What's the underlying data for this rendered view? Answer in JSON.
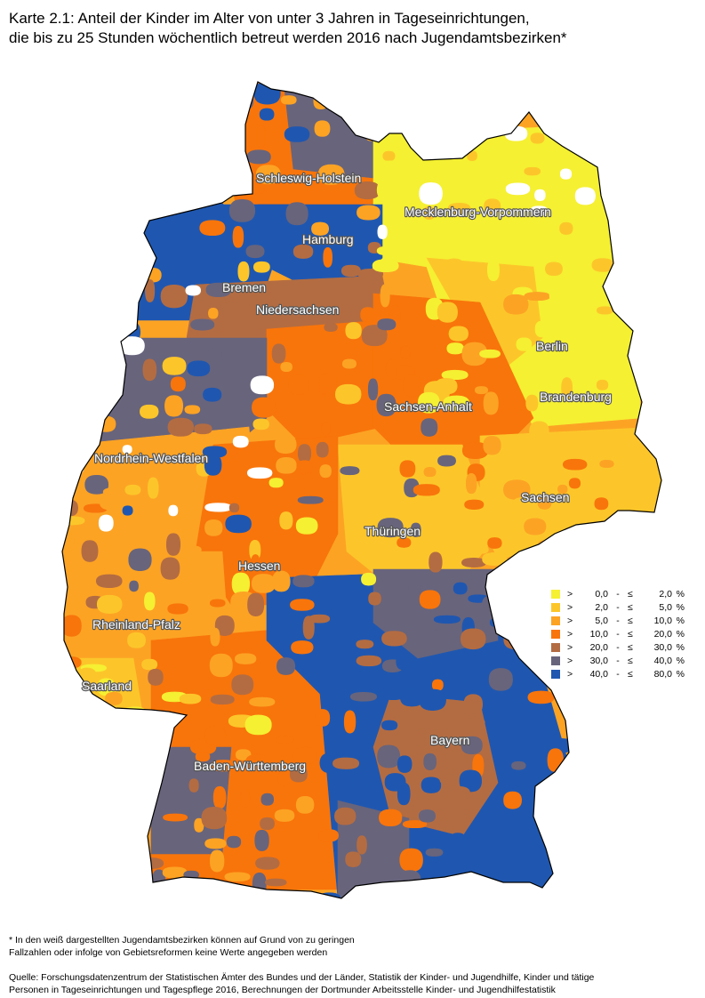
{
  "title": {
    "line1": "Karte 2.1: Anteil der Kinder im Alter von unter 3 Jahren in Tageseinrichtungen,",
    "line2": "die bis zu 25 Stunden wöchentlich betreut werden 2016 nach Jugendamtsbezirken*"
  },
  "colors": {
    "c0": "#f5f032",
    "c1": "#fcc62a",
    "c2": "#fca324",
    "c3": "#f8750b",
    "c4": "#b36c42",
    "c5": "#68647c",
    "c6": "#1f57b0",
    "nodata": "#ffffff",
    "border": "#000000"
  },
  "legend": [
    {
      "gt": ">",
      "low": "0,0",
      "dash": "-",
      "le": "≤",
      "high": "2,0",
      "unit": "%",
      "color": "#f5f032"
    },
    {
      "gt": ">",
      "low": "2,0",
      "dash": "-",
      "le": "≤",
      "high": "5,0",
      "unit": "%",
      "color": "#fcc62a"
    },
    {
      "gt": ">",
      "low": "5,0",
      "dash": "-",
      "le": "≤",
      "high": "10,0",
      "unit": "%",
      "color": "#fca324"
    },
    {
      "gt": ">",
      "low": "10,0",
      "dash": "-",
      "le": "≤",
      "high": "20,0",
      "unit": "%",
      "color": "#f8750b"
    },
    {
      "gt": ">",
      "low": "20,0",
      "dash": "-",
      "le": "≤",
      "high": "30,0",
      "unit": "%",
      "color": "#b36c42"
    },
    {
      "gt": ">",
      "low": "30,0",
      "dash": "-",
      "le": "≤",
      "high": "40,0",
      "unit": "%",
      "color": "#68647c"
    },
    {
      "gt": ">",
      "low": "40,0",
      "dash": "-",
      "le": "≤",
      "high": "80,0",
      "unit": "%",
      "color": "#1f57b0"
    }
  ],
  "states": {
    "schleswig_holstein": "Schleswig-Holstein",
    "hamburg": "Hamburg",
    "mecklenburg_vorpommern": "Mecklenburg-Vorpommern",
    "bremen": "Bremen",
    "niedersachsen": "Niedersachsen",
    "berlin": "Berlin",
    "brandenburg": "Brandenburg",
    "sachsen_anhalt": "Sachsen-Anhalt",
    "nordrhein_westfalen": "Nordrhein-Westfalen",
    "sachsen": "Sachsen",
    "thueringen": "Thüringen",
    "hessen": "Hessen",
    "rheinland_pfalz": "Rheinland-Pfalz",
    "saarland": "Saarland",
    "bayern": "Bayern",
    "baden_wuerttemberg": "Baden-Württemberg"
  },
  "footnote": {
    "line1": "* In den weiß dargestellten Jugendamtsbezirken können auf Grund von zu geringen",
    "line2": "Fallzahlen oder infolge von Gebietsreformen keine Werte angegeben werden"
  },
  "source": {
    "line1": "Quelle: Forschungsdatenzentrum der Statistischen Ämter des Bundes und der Länder, Statistik der Kinder- und Jugendhilfe, Kinder und tätige",
    "line2": "Personen in Tageseinrichtungen und Tagespflege 2016, Berechnungen der Dortmunder Arbeitsstelle Kinder- und Jugendhilfestatistik"
  }
}
